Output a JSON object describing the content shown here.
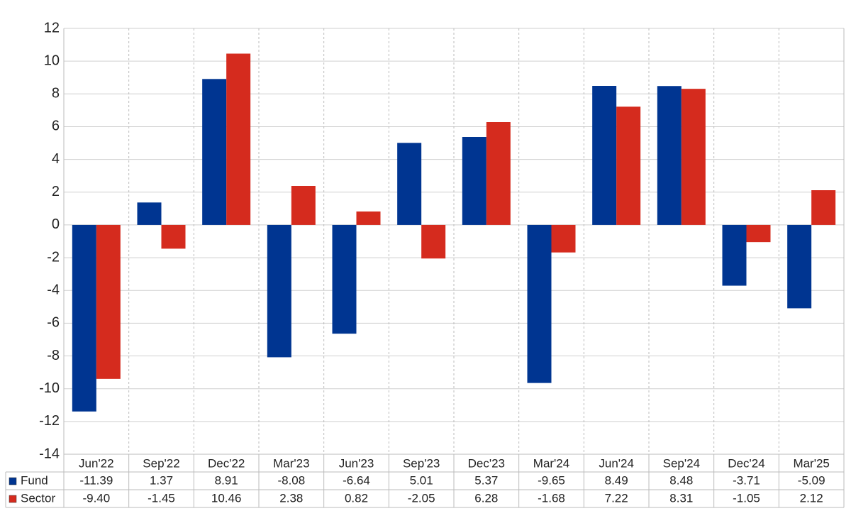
{
  "chart_data": {
    "type": "bar",
    "categories": [
      "Jun'22",
      "Sep'22",
      "Dec'22",
      "Mar'23",
      "Jun'23",
      "Sep'23",
      "Dec'23",
      "Mar'24",
      "Jun'24",
      "Sep'24",
      "Dec'24",
      "Mar'25"
    ],
    "series": [
      {
        "name": "Fund",
        "color": "#003591",
        "values": [
          -11.39,
          1.37,
          8.91,
          -8.08,
          -6.64,
          5.01,
          5.37,
          -9.65,
          8.49,
          8.48,
          -3.71,
          -5.09
        ],
        "value_labels": [
          "-11.39",
          "1.37",
          "8.91",
          "-8.08",
          "-6.64",
          "5.01",
          "5.37",
          "-9.65",
          "8.49",
          "8.48",
          "-3.71",
          "-5.09"
        ]
      },
      {
        "name": "Sector",
        "color": "#d52b1e",
        "values": [
          -9.4,
          -1.45,
          10.46,
          2.38,
          0.82,
          -2.05,
          6.28,
          -1.68,
          7.22,
          8.31,
          -1.05,
          2.12
        ],
        "value_labels": [
          "-9.40",
          "-1.45",
          "10.46",
          "2.38",
          "0.82",
          "-2.05",
          "6.28",
          "-1.68",
          "7.22",
          "8.31",
          "-1.05",
          "2.12"
        ]
      }
    ],
    "ylim": [
      -14,
      12
    ],
    "yticks": [
      -14,
      -12,
      -10,
      -8,
      -6,
      -4,
      -2,
      0,
      2,
      4,
      6,
      8,
      10,
      12
    ],
    "grid": true,
    "negative_label_color": "#e00000"
  }
}
